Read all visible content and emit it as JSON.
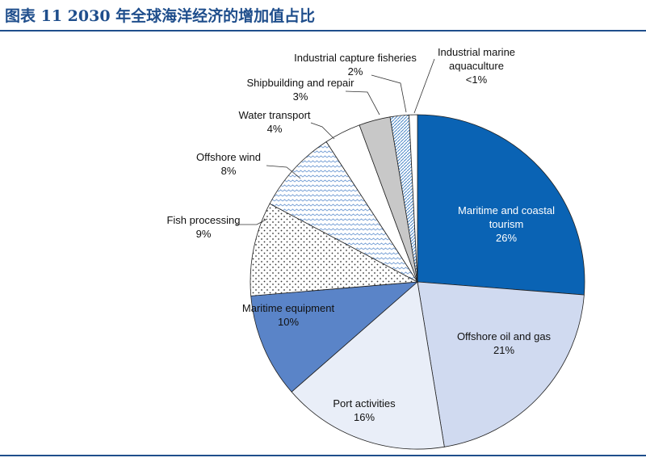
{
  "header": {
    "title": "图表 11   2030 年全球海洋经济的增加值占比"
  },
  "chart_data": {
    "type": "pie",
    "title": "",
    "start_angle_deg": 0,
    "direction": "clockwise",
    "slices": [
      {
        "label": "Maritime and coastal tourism",
        "label_lines": [
          "Maritime and coastal",
          "tourism"
        ],
        "value_label": "26%",
        "value": 26,
        "color": "#0a63b4",
        "pattern": "solid",
        "label_inside": true,
        "label_color": "#ffffff"
      },
      {
        "label": "Offshore oil and gas",
        "label_lines": [
          "Offshore oil and gas"
        ],
        "value_label": "21%",
        "value": 21,
        "color": "#d0daf0",
        "pattern": "solid",
        "label_inside": true,
        "label_color": "#111111"
      },
      {
        "label": "Port activities",
        "label_lines": [
          "Port activities"
        ],
        "value_label": "16%",
        "value": 16,
        "color": "#e9eef8",
        "pattern": "solid",
        "label_inside": true,
        "label_color": "#111111"
      },
      {
        "label": "Maritime equipment",
        "label_lines": [
          "Maritime equipment"
        ],
        "value_label": "10%",
        "value": 10,
        "color": "#5a84c8",
        "pattern": "solid",
        "label_inside": true,
        "label_color": "#111111"
      },
      {
        "label": "Fish processing",
        "label_lines": [
          "Fish processing"
        ],
        "value_label": "9%",
        "value": 9,
        "color": "#ffffff",
        "pattern": "dots",
        "label_inside": false
      },
      {
        "label": "Offshore wind",
        "label_lines": [
          "Offshore wind"
        ],
        "value_label": "8%",
        "value": 8,
        "color": "#ffffff",
        "pattern": "waves",
        "label_inside": false
      },
      {
        "label": "Water transport",
        "label_lines": [
          "Water transport"
        ],
        "value_label": "4%",
        "value": 3.5,
        "color": "#ffffff",
        "pattern": "solid",
        "label_inside": false
      },
      {
        "label": "Shipbuilding and repair",
        "label_lines": [
          "Shipbuilding and repair"
        ],
        "value_label": "3%",
        "value": 3,
        "color": "#c8c8c8",
        "pattern": "solid",
        "label_inside": false
      },
      {
        "label": "Industrial capture fisheries",
        "label_lines": [
          "Industrial capture fisheries"
        ],
        "value_label": "2%",
        "value": 1.8,
        "color": "#ffffff",
        "pattern": "diag",
        "label_inside": false
      },
      {
        "label": "Industrial marine aquaculture",
        "label_lines": [
          "Industrial marine",
          "aquaculture"
        ],
        "value_label": "<1%",
        "value": 0.8,
        "color": "#ffffff",
        "pattern": "solid",
        "label_inside": false
      }
    ]
  }
}
